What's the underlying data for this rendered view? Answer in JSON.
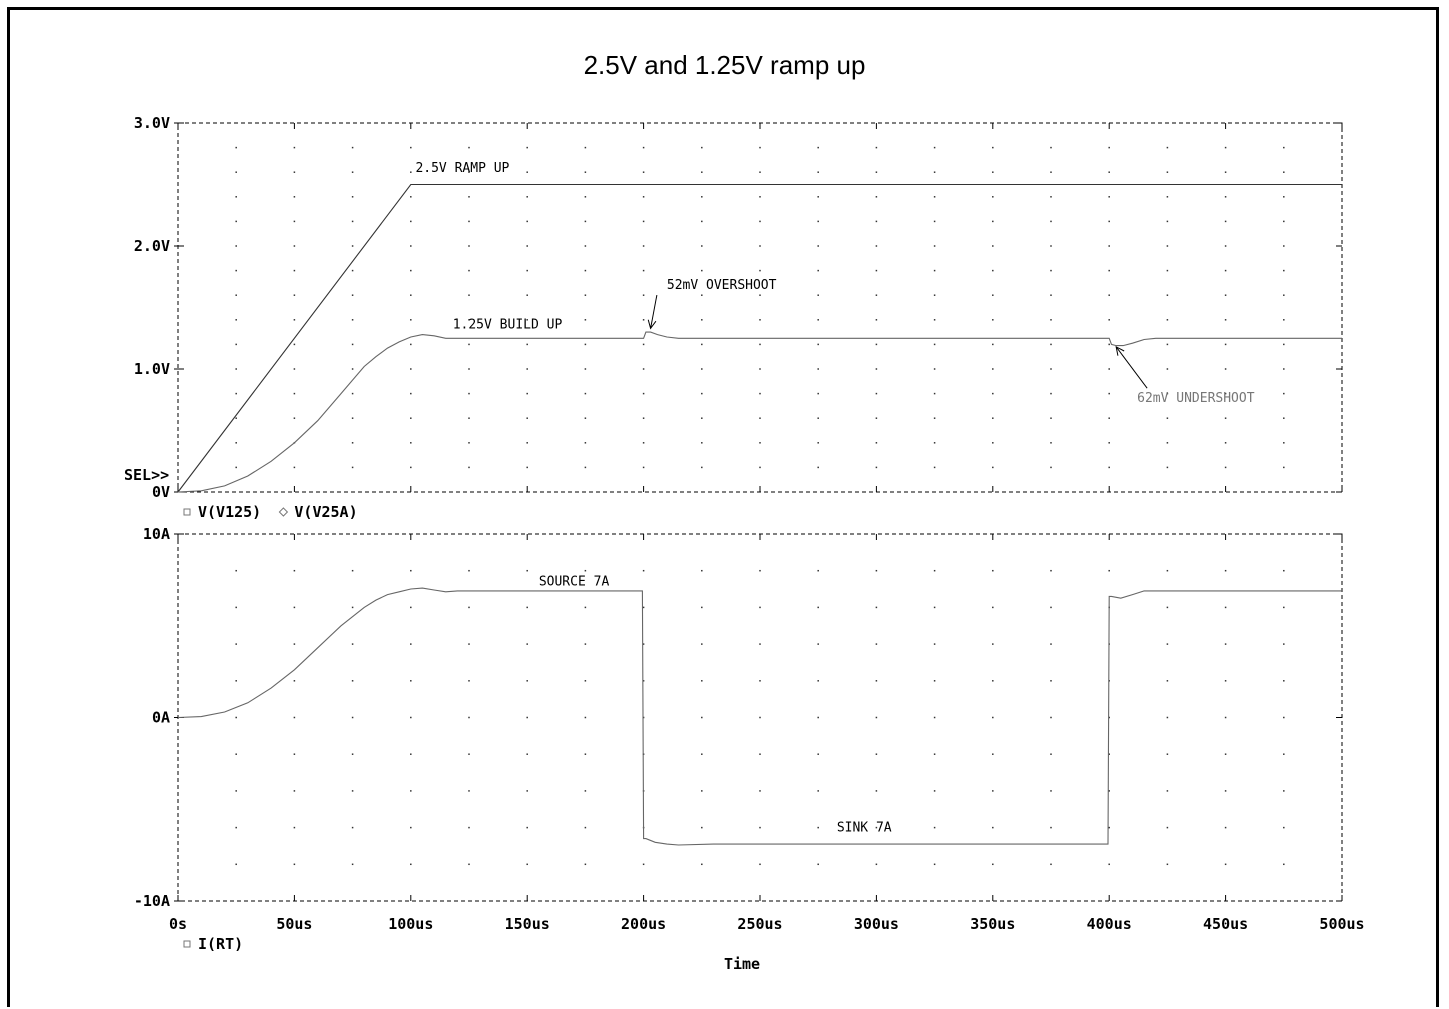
{
  "chart_data": [
    {
      "type": "line",
      "title": "2.5V and 1.25V ramp up",
      "xlabel": "Time",
      "ylabel": "",
      "xlim": [
        0,
        500
      ],
      "ylim": [
        0,
        3.0
      ],
      "x_tick_labels": [
        "0s",
        "50us",
        "100us",
        "150us",
        "200us",
        "250us",
        "300us",
        "350us",
        "400us",
        "450us",
        "500us"
      ],
      "y_tick_labels": [
        {
          "value": 3.0,
          "label": "3.0V"
        },
        {
          "value": 2.0,
          "label": "2.0V"
        },
        {
          "value": 1.0,
          "label": "1.0V"
        },
        {
          "value": 0.0,
          "label": "0V"
        }
      ],
      "selector_label": "SEL>>",
      "legend": [
        {
          "marker": "square",
          "label": "V(V125)"
        },
        {
          "marker": "diamond",
          "label": "V(V25A)"
        }
      ],
      "series": [
        {
          "name": "V(V25A)",
          "x": [
            0,
            100,
            500
          ],
          "y": [
            0,
            2.5,
            2.5
          ]
        },
        {
          "name": "V(V125)",
          "x": [
            0,
            10,
            20,
            30,
            40,
            50,
            60,
            70,
            80,
            85,
            90,
            95,
            100,
            105,
            110,
            115,
            120,
            130,
            150,
            170,
            199,
            200,
            201,
            203,
            206,
            210,
            215,
            230,
            260,
            300,
            350,
            399,
            400,
            401,
            403,
            406,
            410,
            415,
            420,
            450,
            500
          ],
          "y": [
            0,
            0.01,
            0.05,
            0.13,
            0.25,
            0.4,
            0.58,
            0.8,
            1.02,
            1.1,
            1.17,
            1.22,
            1.26,
            1.28,
            1.27,
            1.25,
            1.25,
            1.25,
            1.25,
            1.25,
            1.25,
            1.25,
            1.3,
            1.3,
            1.28,
            1.26,
            1.25,
            1.25,
            1.25,
            1.25,
            1.25,
            1.25,
            1.25,
            1.2,
            1.19,
            1.19,
            1.21,
            1.24,
            1.25,
            1.25,
            1.25
          ]
        }
      ],
      "annotations": [
        {
          "text": "2.5V RAMP UP",
          "x": 102,
          "y": 2.6
        },
        {
          "text": "1.25V BUILD UP",
          "x": 118,
          "y": 1.33
        },
        {
          "text": "52mV OVERSHOOT",
          "x": 210,
          "y": 1.65,
          "arrow_to": {
            "x": 203,
            "y": 1.33
          }
        },
        {
          "text": "62mV UNDERSHOOT",
          "x": 412,
          "y": 0.73,
          "arrow_to": {
            "x": 403,
            "y": 1.18
          }
        }
      ],
      "grid": true
    },
    {
      "type": "line",
      "title": "",
      "xlabel": "Time",
      "ylabel": "",
      "xlim": [
        0,
        500
      ],
      "ylim": [
        -10,
        10
      ],
      "x_tick_labels": [
        "0s",
        "50us",
        "100us",
        "150us",
        "200us",
        "250us",
        "300us",
        "350us",
        "400us",
        "450us",
        "500us"
      ],
      "y_tick_labels": [
        {
          "value": 10,
          "label": "10A"
        },
        {
          "value": 0,
          "label": "0A"
        },
        {
          "value": -10,
          "label": "-10A"
        }
      ],
      "legend": [
        {
          "marker": "square",
          "label": "I(RT)"
        }
      ],
      "series": [
        {
          "name": "I(RT)",
          "x": [
            0,
            10,
            20,
            30,
            40,
            50,
            60,
            70,
            80,
            85,
            90,
            95,
            100,
            105,
            110,
            115,
            120,
            130,
            150,
            170,
            199.5,
            200,
            201,
            205,
            210,
            215,
            230,
            260,
            300,
            350,
            399.5,
            400,
            401,
            405,
            410,
            415,
            420,
            450,
            500
          ],
          "y": [
            0,
            0.05,
            0.3,
            0.8,
            1.6,
            2.6,
            3.8,
            5.0,
            6.0,
            6.4,
            6.7,
            6.85,
            7.0,
            7.05,
            6.95,
            6.85,
            6.9,
            6.9,
            6.9,
            6.9,
            6.9,
            -6.6,
            -6.6,
            -6.8,
            -6.9,
            -6.95,
            -6.9,
            -6.9,
            -6.9,
            -6.9,
            -6.9,
            6.6,
            6.6,
            6.5,
            6.7,
            6.9,
            6.9,
            6.9,
            6.9
          ]
        }
      ],
      "annotations": [
        {
          "text": "SOURCE 7A",
          "x": 155,
          "y": 7.2
        },
        {
          "text": "SINK 7A",
          "x": 283,
          "y": -6.2
        }
      ],
      "grid": true
    }
  ]
}
